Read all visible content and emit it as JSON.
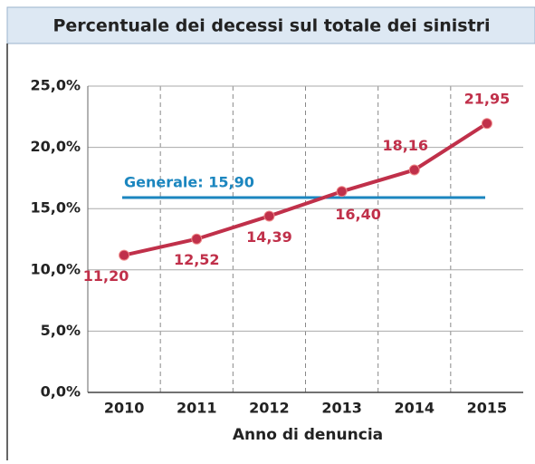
{
  "chart_data": {
    "type": "line",
    "title": "Percentuale dei decessi sul totale dei sinistri",
    "x_label": "Anno di denuncia",
    "categories": [
      "2010",
      "2011",
      "2012",
      "2013",
      "2014",
      "2015"
    ],
    "values": [
      11.2,
      12.52,
      14.39,
      16.4,
      18.16,
      21.95
    ],
    "value_labels": [
      "11,20",
      "12,52",
      "14,39",
      "16,40",
      "18,16",
      "21,95"
    ],
    "color": "#c0304a",
    "reference": {
      "label": "Generale: 15,90",
      "value": 15.9,
      "color": "#1b86bf"
    },
    "ylim": [
      0,
      25
    ],
    "yticks": [
      {
        "value": 0,
        "label": "0,0%"
      },
      {
        "value": 5,
        "label": "5,0%"
      },
      {
        "value": 10,
        "label": "10,0%"
      },
      {
        "value": 15,
        "label": "15,0%"
      },
      {
        "value": 20,
        "label": "20,0%"
      },
      {
        "value": 25,
        "label": "25,0%"
      }
    ],
    "grid": true
  }
}
